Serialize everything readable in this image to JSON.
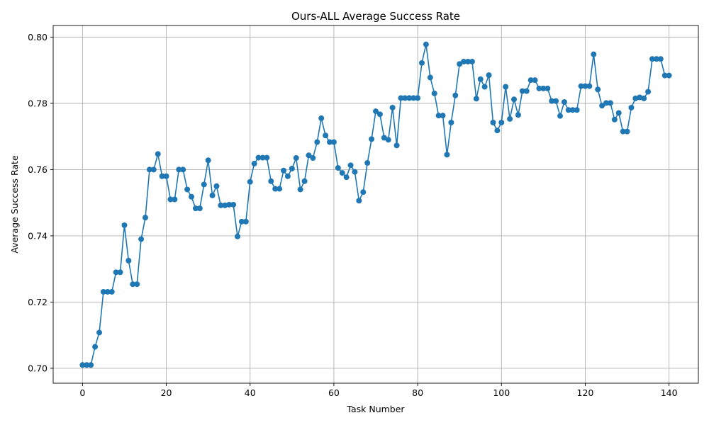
{
  "chart_data": {
    "type": "line",
    "title": "Ours-ALL Average Success Rate",
    "xlabel": "Task Number",
    "ylabel": "Average Success Rate",
    "xlim": [
      -7,
      147
    ],
    "ylim": [
      0.6955,
      0.8035
    ],
    "xticks": [
      0,
      20,
      40,
      60,
      80,
      100,
      120,
      140
    ],
    "yticks": [
      0.7,
      0.72,
      0.74,
      0.76,
      0.78,
      0.8
    ],
    "ytick_labels": [
      "0.70",
      "0.72",
      "0.74",
      "0.76",
      "0.78",
      "0.80"
    ],
    "grid": true,
    "marker": "circle",
    "color": "#1f77b4",
    "x": [
      0,
      1,
      2,
      3,
      4,
      5,
      6,
      7,
      8,
      9,
      10,
      11,
      12,
      13,
      14,
      15,
      16,
      17,
      18,
      19,
      20,
      21,
      22,
      23,
      24,
      25,
      26,
      27,
      28,
      29,
      30,
      31,
      32,
      33,
      34,
      35,
      36,
      37,
      38,
      39,
      40,
      41,
      42,
      43,
      44,
      45,
      46,
      47,
      48,
      49,
      50,
      51,
      52,
      53,
      54,
      55,
      56,
      57,
      58,
      59,
      60,
      61,
      62,
      63,
      64,
      65,
      66,
      67,
      68,
      69,
      70,
      71,
      72,
      73,
      74,
      75,
      76,
      77,
      78,
      79,
      80,
      81,
      82,
      83,
      84,
      85,
      86,
      87,
      88,
      89,
      90,
      91,
      92,
      93,
      94,
      95,
      96,
      97,
      98,
      99,
      100,
      101,
      102,
      103,
      104,
      105,
      106,
      107,
      108,
      109,
      110,
      111,
      112,
      113,
      114,
      115,
      116,
      117,
      118,
      119,
      120,
      121,
      122,
      123,
      124,
      125,
      126,
      127,
      128,
      129,
      130,
      131,
      132,
      133,
      134,
      135,
      136,
      137,
      138,
      139,
      140
    ],
    "y": [
      0.701,
      0.701,
      0.701,
      0.7065,
      0.7108,
      0.7231,
      0.7231,
      0.7231,
      0.729,
      0.729,
      0.7432,
      0.7325,
      0.7254,
      0.7254,
      0.739,
      0.7455,
      0.76,
      0.76,
      0.7647,
      0.758,
      0.758,
      0.751,
      0.751,
      0.76,
      0.76,
      0.754,
      0.7518,
      0.7483,
      0.7483,
      0.7555,
      0.7628,
      0.7522,
      0.755,
      0.7492,
      0.7492,
      0.7494,
      0.7494,
      0.7398,
      0.7443,
      0.7443,
      0.7563,
      0.7618,
      0.7636,
      0.7636,
      0.7636,
      0.7565,
      0.7542,
      0.7542,
      0.7597,
      0.758,
      0.7603,
      0.7635,
      0.754,
      0.7565,
      0.7643,
      0.7635,
      0.7683,
      0.7755,
      0.7703,
      0.7683,
      0.7683,
      0.7605,
      0.759,
      0.7577,
      0.7613,
      0.7593,
      0.7506,
      0.7532,
      0.762,
      0.7692,
      0.7776,
      0.7767,
      0.7696,
      0.769,
      0.7787,
      0.7673,
      0.7816,
      0.7816,
      0.7816,
      0.7816,
      0.7816,
      0.7922,
      0.7978,
      0.7878,
      0.783,
      0.7763,
      0.7763,
      0.7645,
      0.7742,
      0.7824,
      0.7919,
      0.7926,
      0.7926,
      0.7926,
      0.7814,
      0.7873,
      0.785,
      0.7885,
      0.7742,
      0.7718,
      0.7742,
      0.785,
      0.7753,
      0.7812,
      0.7765,
      0.7837,
      0.7837,
      0.787,
      0.787,
      0.7845,
      0.7845,
      0.7845,
      0.7807,
      0.7807,
      0.7762,
      0.7804,
      0.778,
      0.778,
      0.778,
      0.7852,
      0.7852,
      0.7852,
      0.7948,
      0.7842,
      0.7793,
      0.7801,
      0.7801,
      0.7751,
      0.7771,
      0.7715,
      0.7715,
      0.7787,
      0.7815,
      0.7818,
      0.7815,
      0.7835,
      0.7934,
      0.7934,
      0.7934,
      0.7884,
      0.7884
    ]
  }
}
